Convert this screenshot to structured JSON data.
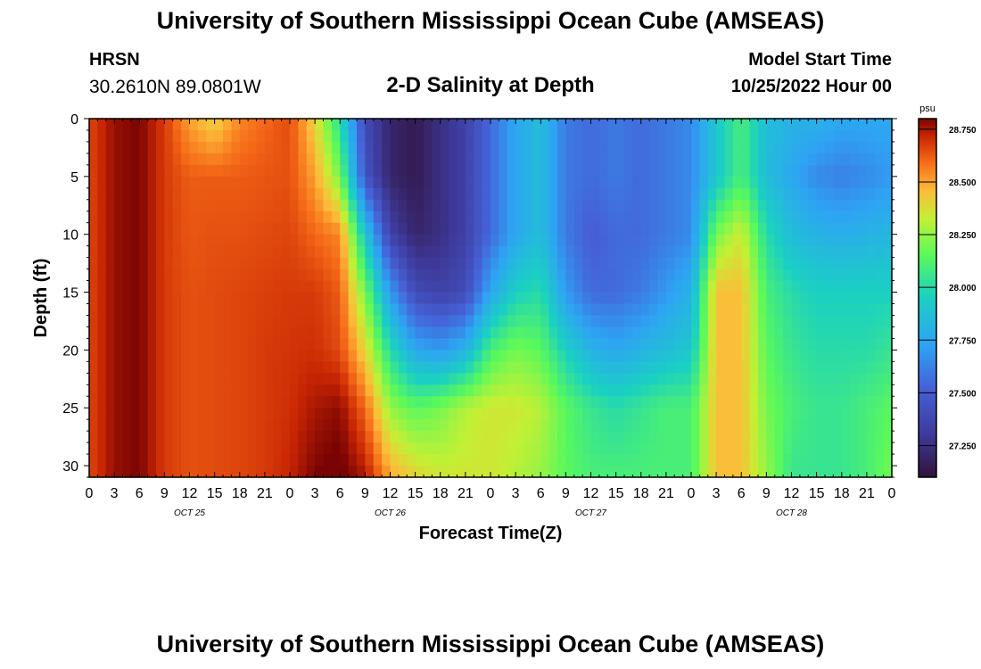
{
  "header": {
    "title": "University of Southern Mississippi Ocean Cube (AMSEAS)",
    "station": "HRSN",
    "coords": "30.2610N  89.0801W",
    "subtitle": "2-D Salinity at Depth",
    "model_start_label": "Model Start Time",
    "model_start_value": "10/25/2022 Hour 00"
  },
  "footer": {
    "title": "University of Southern Mississippi Ocean Cube (AMSEAS)"
  },
  "chart_data": {
    "type": "heatmap",
    "title": "2-D Salinity at Depth",
    "xlabel": "Forecast Time(Z)",
    "ylabel": "Depth (ft)",
    "x_ticks": [
      "0",
      "3",
      "6",
      "9",
      "12",
      "15",
      "18",
      "21",
      "0",
      "3",
      "6",
      "9",
      "12",
      "15",
      "18",
      "21",
      "0",
      "3",
      "6",
      "9",
      "12",
      "15",
      "18",
      "21",
      "0",
      "3",
      "6",
      "9",
      "12",
      "15",
      "18",
      "21",
      "0"
    ],
    "day_labels": [
      {
        "label": "OCT 25",
        "hour": 12
      },
      {
        "label": "OCT 26",
        "hour": 36
      },
      {
        "label": "OCT 27",
        "hour": 60
      },
      {
        "label": "OCT 28",
        "hour": 84
      }
    ],
    "x_range_hours": [
      0,
      96
    ],
    "ylim": [
      0,
      31
    ],
    "y_ticks": [
      0,
      5,
      10,
      15,
      20,
      25,
      30
    ],
    "colorbar": {
      "unit": "psu",
      "range": [
        27.1,
        28.8
      ],
      "ticks": [
        "28.750",
        "28.500",
        "28.250",
        "28.000",
        "27.750",
        "27.500",
        "27.250"
      ],
      "tick_values": [
        28.75,
        28.5,
        28.25,
        28.0,
        27.75,
        27.5,
        27.25
      ]
    },
    "grid_hours": [
      0,
      3,
      6,
      9,
      12,
      15,
      18,
      21,
      24,
      27,
      30,
      33,
      36,
      39,
      42,
      45,
      48,
      51,
      54,
      57,
      60,
      63,
      66,
      69,
      72,
      75,
      78,
      81,
      84,
      87,
      90,
      93,
      96
    ],
    "grid_depths": [
      0,
      5,
      10,
      15,
      20,
      25,
      31
    ],
    "salinity": [
      [
        28.66,
        28.77,
        28.8,
        28.68,
        28.5,
        28.4,
        28.55,
        28.6,
        28.65,
        28.4,
        28.0,
        27.4,
        27.2,
        27.15,
        27.25,
        27.35,
        27.55,
        27.75,
        27.85,
        27.6,
        27.55,
        27.6,
        27.55,
        27.6,
        27.65,
        27.9,
        28.1,
        27.85,
        27.8,
        27.8,
        27.75,
        27.75,
        27.75
      ],
      [
        28.66,
        28.77,
        28.8,
        28.68,
        28.62,
        28.62,
        28.62,
        28.63,
        28.64,
        28.5,
        28.2,
        27.45,
        27.2,
        27.15,
        27.25,
        27.35,
        27.55,
        27.75,
        27.85,
        27.6,
        27.55,
        27.6,
        27.55,
        27.6,
        27.65,
        27.9,
        28.1,
        27.85,
        27.75,
        27.65,
        27.62,
        27.65,
        27.7
      ],
      [
        28.66,
        28.77,
        28.8,
        28.68,
        28.63,
        28.64,
        28.64,
        28.65,
        28.66,
        28.6,
        28.55,
        27.9,
        27.35,
        27.2,
        27.25,
        27.35,
        27.55,
        27.75,
        27.85,
        27.6,
        27.5,
        27.55,
        27.55,
        27.6,
        27.65,
        28.2,
        28.35,
        28.0,
        27.85,
        27.8,
        27.78,
        27.8,
        27.82
      ],
      [
        28.66,
        28.77,
        28.8,
        28.68,
        28.64,
        28.65,
        28.66,
        28.67,
        28.68,
        28.68,
        28.62,
        28.2,
        27.7,
        27.4,
        27.35,
        27.4,
        27.75,
        27.95,
        28.0,
        27.7,
        27.55,
        27.55,
        27.6,
        27.7,
        27.8,
        28.45,
        28.45,
        28.1,
        28.0,
        27.95,
        27.95,
        27.95,
        27.95
      ],
      [
        28.66,
        28.77,
        28.8,
        28.68,
        28.64,
        28.65,
        28.66,
        28.68,
        28.69,
        28.7,
        28.65,
        28.4,
        28.0,
        27.75,
        27.7,
        27.8,
        28.1,
        28.2,
        28.15,
        27.95,
        27.8,
        27.75,
        27.8,
        27.85,
        27.9,
        28.45,
        28.45,
        28.15,
        28.05,
        28.0,
        28.0,
        28.0,
        28.05
      ],
      [
        28.66,
        28.77,
        28.8,
        28.68,
        28.64,
        28.65,
        28.66,
        28.68,
        28.7,
        28.75,
        28.78,
        28.6,
        28.25,
        28.15,
        28.2,
        28.3,
        28.35,
        28.35,
        28.3,
        28.15,
        28.05,
        28.0,
        28.05,
        28.1,
        28.1,
        28.45,
        28.45,
        28.2,
        28.1,
        28.05,
        28.05,
        28.1,
        28.15
      ],
      [
        28.66,
        28.77,
        28.8,
        28.68,
        28.64,
        28.65,
        28.66,
        28.68,
        28.72,
        28.8,
        28.82,
        28.75,
        28.5,
        28.4,
        28.35,
        28.35,
        28.35,
        28.3,
        28.25,
        28.15,
        28.1,
        28.1,
        28.1,
        28.1,
        28.1,
        28.45,
        28.45,
        28.25,
        28.05,
        28.05,
        28.05,
        28.1,
        28.2
      ]
    ]
  }
}
